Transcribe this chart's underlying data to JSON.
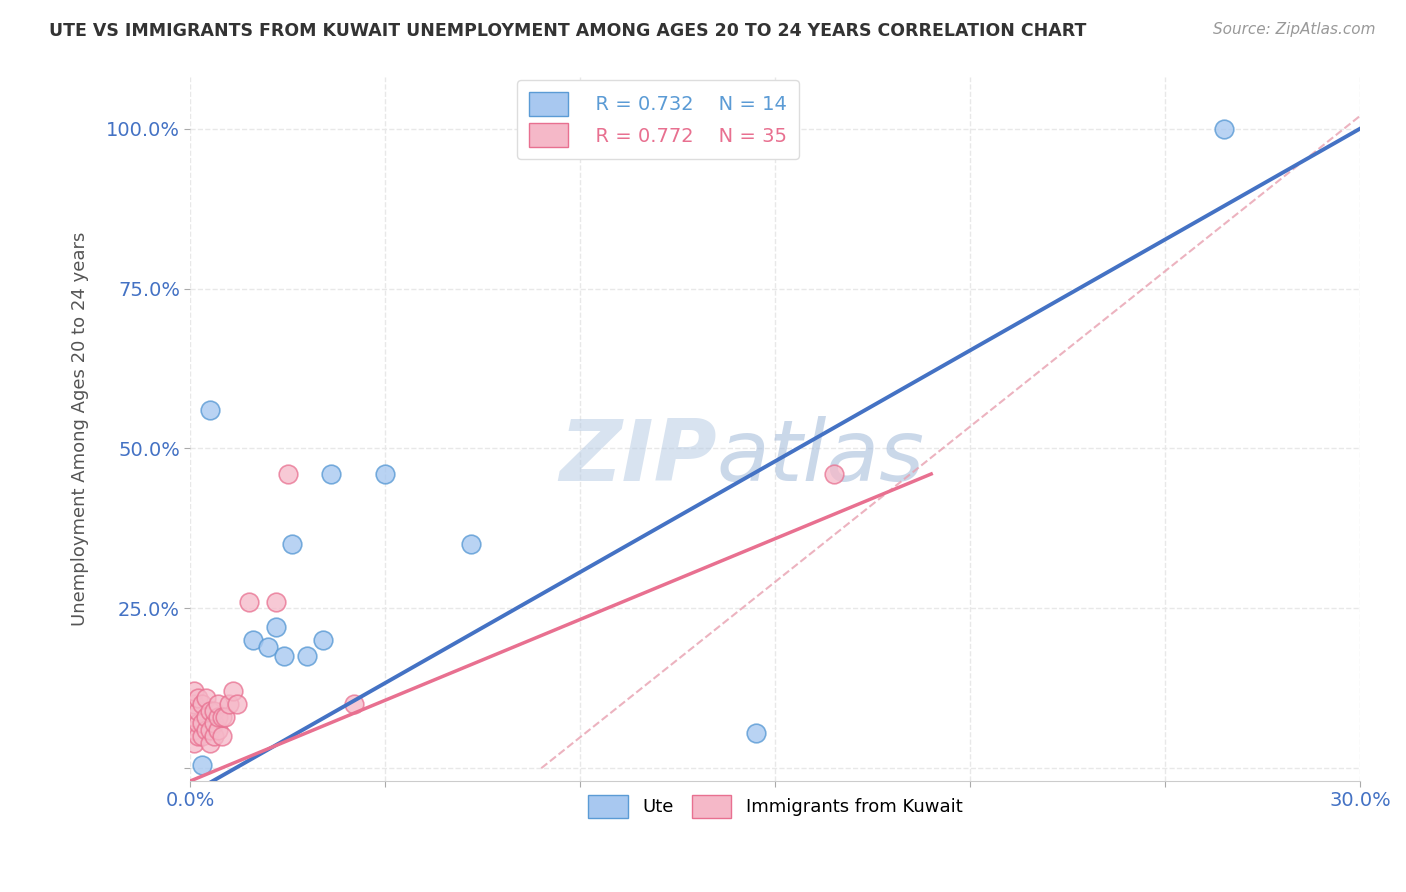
{
  "title": "UTE VS IMMIGRANTS FROM KUWAIT UNEMPLOYMENT AMONG AGES 20 TO 24 YEARS CORRELATION CHART",
  "source": "Source: ZipAtlas.com",
  "ylabel": "Unemployment Among Ages 20 to 24 years",
  "xlim": [
    0.0,
    0.3
  ],
  "ylim": [
    -0.02,
    1.08
  ],
  "xticks": [
    0.0,
    0.05,
    0.1,
    0.15,
    0.2,
    0.25,
    0.3
  ],
  "xtick_labels": [
    "0.0%",
    "",
    "",
    "",
    "",
    "",
    "30.0%"
  ],
  "yticks": [
    0.0,
    0.25,
    0.5,
    0.75,
    1.0
  ],
  "ytick_labels": [
    "",
    "25.0%",
    "50.0%",
    "75.0%",
    "100.0%"
  ],
  "blue_fill": "#A8C8F0",
  "blue_edge": "#5B9BD5",
  "pink_fill": "#F5B8C8",
  "pink_edge": "#E87090",
  "blue_line_color": "#4472C4",
  "pink_line_color": "#E87090",
  "ref_line_color": "#E8A0B0",
  "R_blue": 0.732,
  "N_blue": 14,
  "R_pink": 0.772,
  "N_pink": 35,
  "blue_scatter_x": [
    0.003,
    0.005,
    0.016,
    0.02,
    0.022,
    0.024,
    0.026,
    0.03,
    0.034,
    0.036,
    0.05,
    0.072,
    0.145,
    0.265
  ],
  "blue_scatter_y": [
    0.005,
    0.56,
    0.2,
    0.19,
    0.22,
    0.175,
    0.35,
    0.175,
    0.2,
    0.46,
    0.46,
    0.35,
    0.055,
    1.0
  ],
  "pink_scatter_x": [
    0.001,
    0.001,
    0.001,
    0.001,
    0.001,
    0.002,
    0.002,
    0.002,
    0.002,
    0.003,
    0.003,
    0.003,
    0.004,
    0.004,
    0.004,
    0.005,
    0.005,
    0.005,
    0.006,
    0.006,
    0.006,
    0.007,
    0.007,
    0.007,
    0.008,
    0.008,
    0.009,
    0.01,
    0.011,
    0.012,
    0.015,
    0.022,
    0.025,
    0.042,
    0.165
  ],
  "pink_scatter_y": [
    0.04,
    0.06,
    0.08,
    0.1,
    0.12,
    0.05,
    0.07,
    0.09,
    0.11,
    0.05,
    0.07,
    0.1,
    0.06,
    0.08,
    0.11,
    0.04,
    0.06,
    0.09,
    0.05,
    0.07,
    0.09,
    0.06,
    0.08,
    0.1,
    0.05,
    0.08,
    0.08,
    0.1,
    0.12,
    0.1,
    0.26,
    0.26,
    0.46,
    0.1,
    0.46
  ],
  "blue_line_x0": 0.0,
  "blue_line_y0": -0.04,
  "blue_line_x1": 0.3,
  "blue_line_y1": 1.0,
  "pink_line_x0": 0.0,
  "pink_line_y0": -0.02,
  "pink_line_x1": 0.19,
  "pink_line_y1": 0.46,
  "ref_line_x0": 0.09,
  "ref_line_y0": 0.0,
  "ref_line_x1": 0.3,
  "ref_line_y1": 1.02,
  "watermark_top": "ZIP",
  "watermark_bot": "atlas",
  "watermark_color": "#C8D8F0",
  "background_color": "#FFFFFF",
  "grid_color": "#E8E8E8",
  "grid_style": "--"
}
